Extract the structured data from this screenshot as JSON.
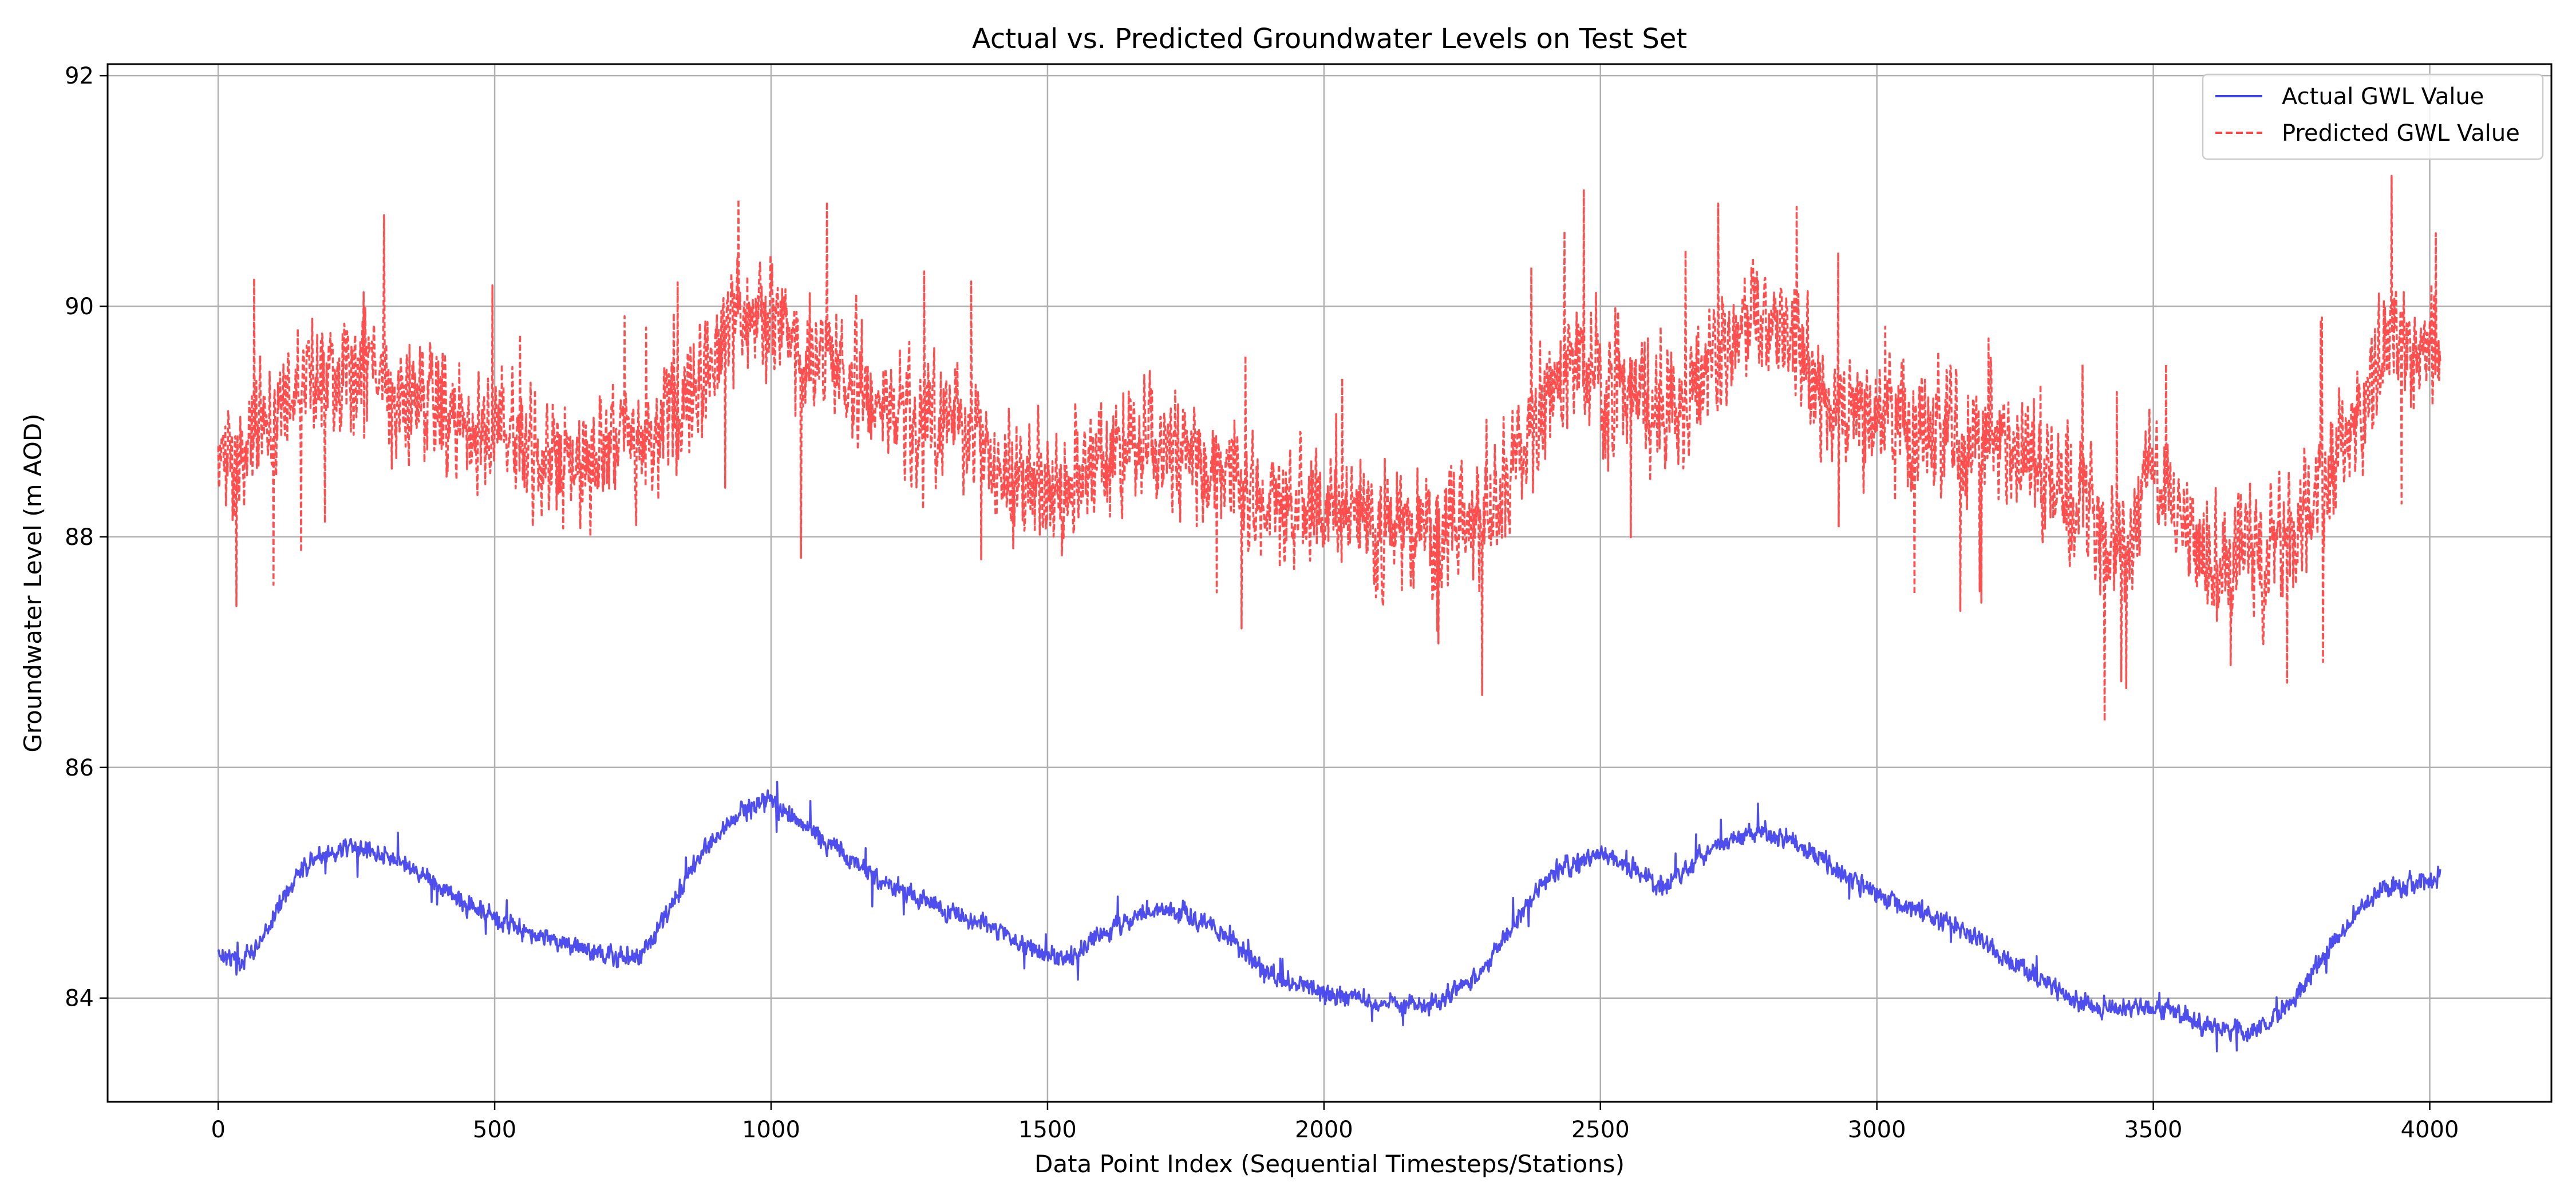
{
  "chart_data": {
    "type": "line",
    "title": "Actual vs. Predicted Groundwater Levels on Test Set",
    "xlabel": "Data Point Index (Sequential Timesteps/Stations)",
    "ylabel": "Groundwater Level (m AOD)",
    "xlim": [
      -200,
      4220
    ],
    "ylim": [
      83.1,
      92.1
    ],
    "xticks": [
      0,
      500,
      1000,
      1500,
      2000,
      2500,
      3000,
      3500,
      4000
    ],
    "yticks": [
      84,
      86,
      88,
      90,
      92
    ],
    "grid": true,
    "legend_position": "top-right",
    "x_count": 4020,
    "series": [
      {
        "name": "Actual GWL Value",
        "color": "#4444ee",
        "style": "solid",
        "noise": 0.12,
        "anchors": [
          [
            0,
            84.4
          ],
          [
            40,
            84.3
          ],
          [
            80,
            84.5
          ],
          [
            120,
            84.9
          ],
          [
            170,
            85.2
          ],
          [
            230,
            85.3
          ],
          [
            300,
            85.25
          ],
          [
            380,
            85.05
          ],
          [
            450,
            84.8
          ],
          [
            550,
            84.6
          ],
          [
            650,
            84.45
          ],
          [
            720,
            84.35
          ],
          [
            760,
            84.35
          ],
          [
            820,
            84.8
          ],
          [
            880,
            85.3
          ],
          [
            950,
            85.65
          ],
          [
            1000,
            85.7
          ],
          [
            1060,
            85.5
          ],
          [
            1120,
            85.3
          ],
          [
            1200,
            85.0
          ],
          [
            1300,
            84.8
          ],
          [
            1400,
            84.6
          ],
          [
            1480,
            84.4
          ],
          [
            1540,
            84.35
          ],
          [
            1600,
            84.55
          ],
          [
            1670,
            84.75
          ],
          [
            1750,
            84.75
          ],
          [
            1820,
            84.55
          ],
          [
            1900,
            84.2
          ],
          [
            2000,
            84.05
          ],
          [
            2100,
            83.95
          ],
          [
            2200,
            83.95
          ],
          [
            2280,
            84.2
          ],
          [
            2350,
            84.7
          ],
          [
            2420,
            85.1
          ],
          [
            2500,
            85.25
          ],
          [
            2560,
            85.1
          ],
          [
            2620,
            84.95
          ],
          [
            2700,
            85.3
          ],
          [
            2780,
            85.45
          ],
          [
            2850,
            85.35
          ],
          [
            2900,
            85.2
          ],
          [
            2980,
            84.95
          ],
          [
            3050,
            84.8
          ],
          [
            3150,
            84.6
          ],
          [
            3250,
            84.3
          ],
          [
            3330,
            84.05
          ],
          [
            3400,
            83.9
          ],
          [
            3480,
            83.9
          ],
          [
            3530,
            83.9
          ],
          [
            3600,
            83.75
          ],
          [
            3670,
            83.7
          ],
          [
            3740,
            83.9
          ],
          [
            3800,
            84.3
          ],
          [
            3860,
            84.7
          ],
          [
            3920,
            84.95
          ],
          [
            3980,
            85.0
          ],
          [
            4020,
            85.05
          ]
        ]
      },
      {
        "name": "Predicted GWL Value",
        "color": "#ff4444",
        "style": "dashed",
        "noise": 0.75,
        "anchors": [
          [
            0,
            88.6
          ],
          [
            50,
            88.8
          ],
          [
            100,
            89.1
          ],
          [
            180,
            89.4
          ],
          [
            250,
            89.6
          ],
          [
            320,
            89.3
          ],
          [
            400,
            89.1
          ],
          [
            450,
            88.9
          ],
          [
            550,
            88.8
          ],
          [
            650,
            88.6
          ],
          [
            720,
            88.8
          ],
          [
            800,
            89.0
          ],
          [
            880,
            89.4
          ],
          [
            950,
            90.0
          ],
          [
            1000,
            89.9
          ],
          [
            1050,
            89.6
          ],
          [
            1150,
            89.3
          ],
          [
            1250,
            89.0
          ],
          [
            1350,
            88.9
          ],
          [
            1450,
            88.5
          ],
          [
            1520,
            88.4
          ],
          [
            1600,
            88.6
          ],
          [
            1700,
            88.8
          ],
          [
            1800,
            88.6
          ],
          [
            1900,
            88.3
          ],
          [
            2000,
            88.2
          ],
          [
            2100,
            88.1
          ],
          [
            2200,
            88.0
          ],
          [
            2300,
            88.2
          ],
          [
            2380,
            88.9
          ],
          [
            2450,
            89.5
          ],
          [
            2550,
            89.3
          ],
          [
            2650,
            89.2
          ],
          [
            2750,
            89.9
          ],
          [
            2850,
            89.8
          ],
          [
            2900,
            89.2
          ],
          [
            3000,
            89.0
          ],
          [
            3100,
            88.9
          ],
          [
            3200,
            88.9
          ],
          [
            3300,
            88.6
          ],
          [
            3400,
            88.1
          ],
          [
            3450,
            87.8
          ],
          [
            3500,
            88.7
          ],
          [
            3550,
            88.1
          ],
          [
            3600,
            87.8
          ],
          [
            3700,
            87.8
          ],
          [
            3800,
            88.3
          ],
          [
            3860,
            89.1
          ],
          [
            3920,
            89.7
          ],
          [
            3970,
            89.6
          ],
          [
            4020,
            89.6
          ]
        ]
      }
    ]
  }
}
